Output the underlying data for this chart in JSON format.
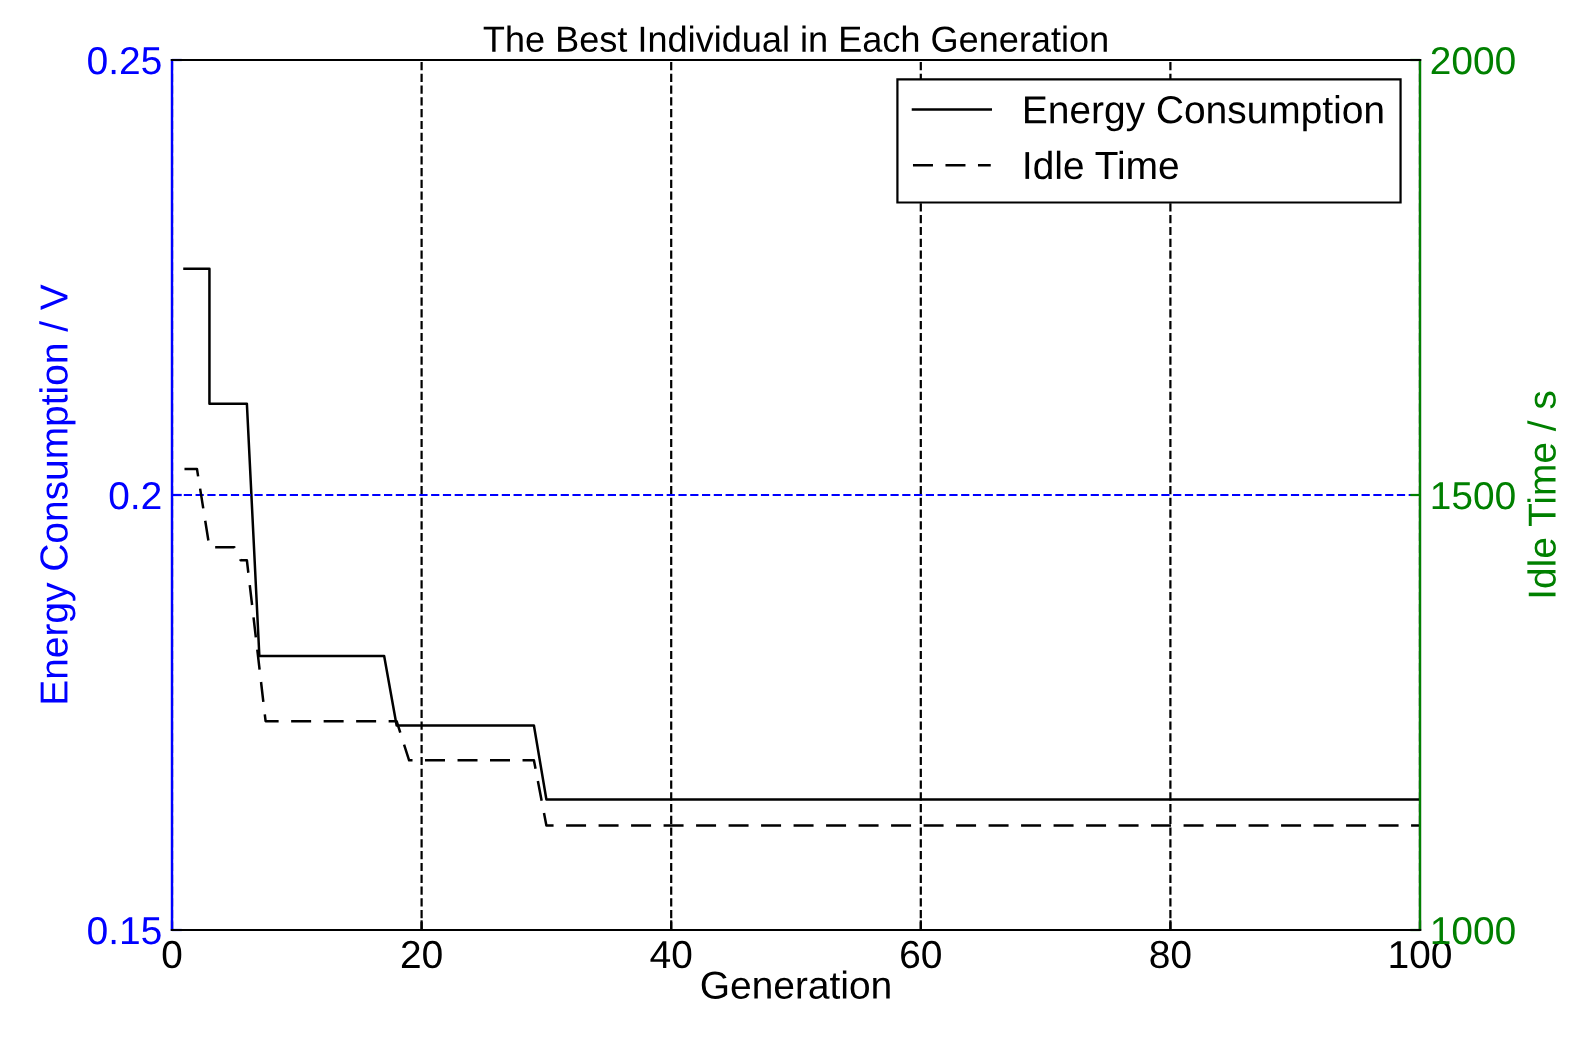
{
  "chart_data": {
    "type": "line",
    "title": "The Best Individual in Each Generation",
    "xlabel": "Generation",
    "ylabel": "Energy Consumption / V",
    "y2label": "Idle Time / s",
    "series": [
      {
        "name": "Energy Consumption",
        "color": "#000000",
        "line_style": "solid",
        "x": [
          1,
          3,
          3,
          6,
          7,
          17,
          18,
          29,
          30,
          100
        ],
        "values": [
          0.226,
          0.226,
          0.2105,
          0.2105,
          0.1815,
          0.1815,
          0.1735,
          0.1735,
          0.165,
          0.165
        ]
      },
      {
        "name": "Idle Time",
        "color": "#000000",
        "line_style": "dashed",
        "axis": "y2",
        "x": [
          1,
          2,
          3,
          5,
          5.5,
          6,
          7.5,
          18,
          19,
          29,
          30,
          100
        ],
        "values": [
          1530,
          1530,
          1440,
          1440,
          1425,
          1425,
          1240,
          1240,
          1195,
          1195,
          1120,
          1120
        ]
      }
    ],
    "xlim": [
      0,
      100
    ],
    "xticks": [
      0,
      20,
      40,
      60,
      80,
      100
    ],
    "ylim": [
      0.15,
      0.25
    ],
    "yticks": [
      0.15,
      0.2,
      0.25
    ],
    "y2lim": [
      1000,
      2000
    ],
    "y2ticks": [
      1000,
      1500,
      2000
    ],
    "ref_lines": [
      {
        "axis": "y",
        "value": 0.2,
        "color": "#0000ff",
        "line_style": "dashed"
      }
    ],
    "grid": "x",
    "legend": "top right"
  }
}
